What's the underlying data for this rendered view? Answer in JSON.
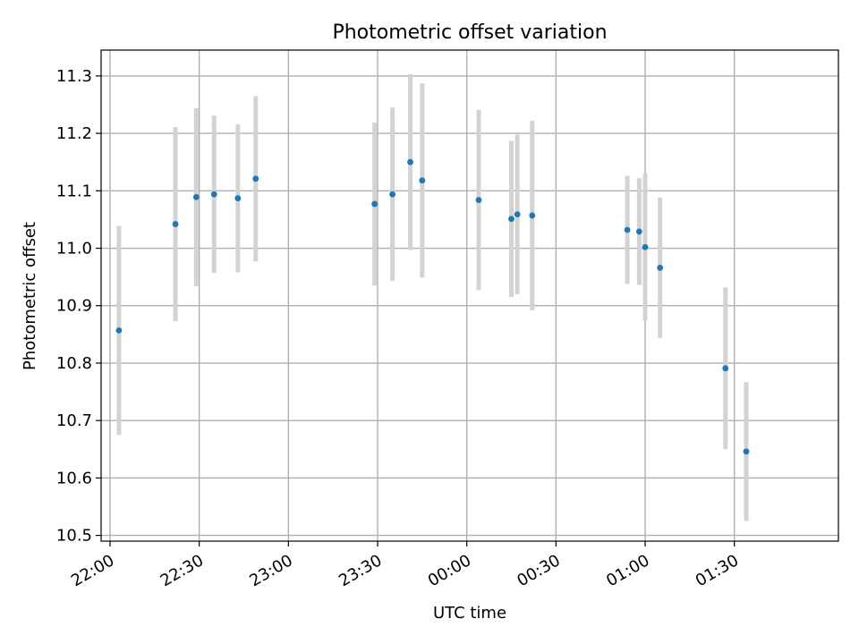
{
  "chart_data": {
    "type": "scatter",
    "title": "Photometric offset variation",
    "xlabel": "UTC time",
    "ylabel": "Photometric offset",
    "x_axis_type": "time",
    "xlim": [
      "21:57",
      "02:05"
    ],
    "ylim": [
      10.49,
      11.345
    ],
    "grid": true,
    "x_ticks": [
      "22:00",
      "22:30",
      "23:00",
      "23:30",
      "00:00",
      "00:30",
      "01:00",
      "01:30"
    ],
    "y_ticks": [
      "10.5",
      "10.6",
      "10.7",
      "10.8",
      "10.9",
      "11.0",
      "11.1",
      "11.2",
      "11.3"
    ],
    "colors": {
      "point": "#1f77b4",
      "errorbar": "#d3d3d3",
      "grid": "#b0b0b0"
    },
    "points": [
      {
        "x": "22:03",
        "y": 10.857,
        "yerr": 0.182
      },
      {
        "x": "22:22",
        "y": 11.042,
        "yerr": 0.169
      },
      {
        "x": "22:29",
        "y": 11.089,
        "yerr": 0.155
      },
      {
        "x": "22:35",
        "y": 11.094,
        "yerr": 0.137
      },
      {
        "x": "22:43",
        "y": 11.087,
        "yerr": 0.129
      },
      {
        "x": "22:49",
        "y": 11.121,
        "yerr": 0.144
      },
      {
        "x": "23:29",
        "y": 11.077,
        "yerr": 0.142
      },
      {
        "x": "23:35",
        "y": 11.094,
        "yerr": 0.151
      },
      {
        "x": "23:41",
        "y": 11.15,
        "yerr": 0.153
      },
      {
        "x": "23:45",
        "y": 11.118,
        "yerr": 0.169
      },
      {
        "x": "00:04",
        "y": 11.084,
        "yerr": 0.157
      },
      {
        "x": "00:15",
        "y": 11.051,
        "yerr": 0.136
      },
      {
        "x": "00:17",
        "y": 11.059,
        "yerr": 0.139
      },
      {
        "x": "00:22",
        "y": 11.057,
        "yerr": 0.165
      },
      {
        "x": "00:54",
        "y": 11.032,
        "yerr": 0.094
      },
      {
        "x": "00:58",
        "y": 11.029,
        "yerr": 0.093
      },
      {
        "x": "01:00",
        "y": 11.002,
        "yerr": 0.128
      },
      {
        "x": "01:05",
        "y": 10.966,
        "yerr": 0.122
      },
      {
        "x": "01:27",
        "y": 10.791,
        "yerr": 0.141
      },
      {
        "x": "01:34",
        "y": 10.646,
        "yerr": 0.121
      }
    ]
  }
}
